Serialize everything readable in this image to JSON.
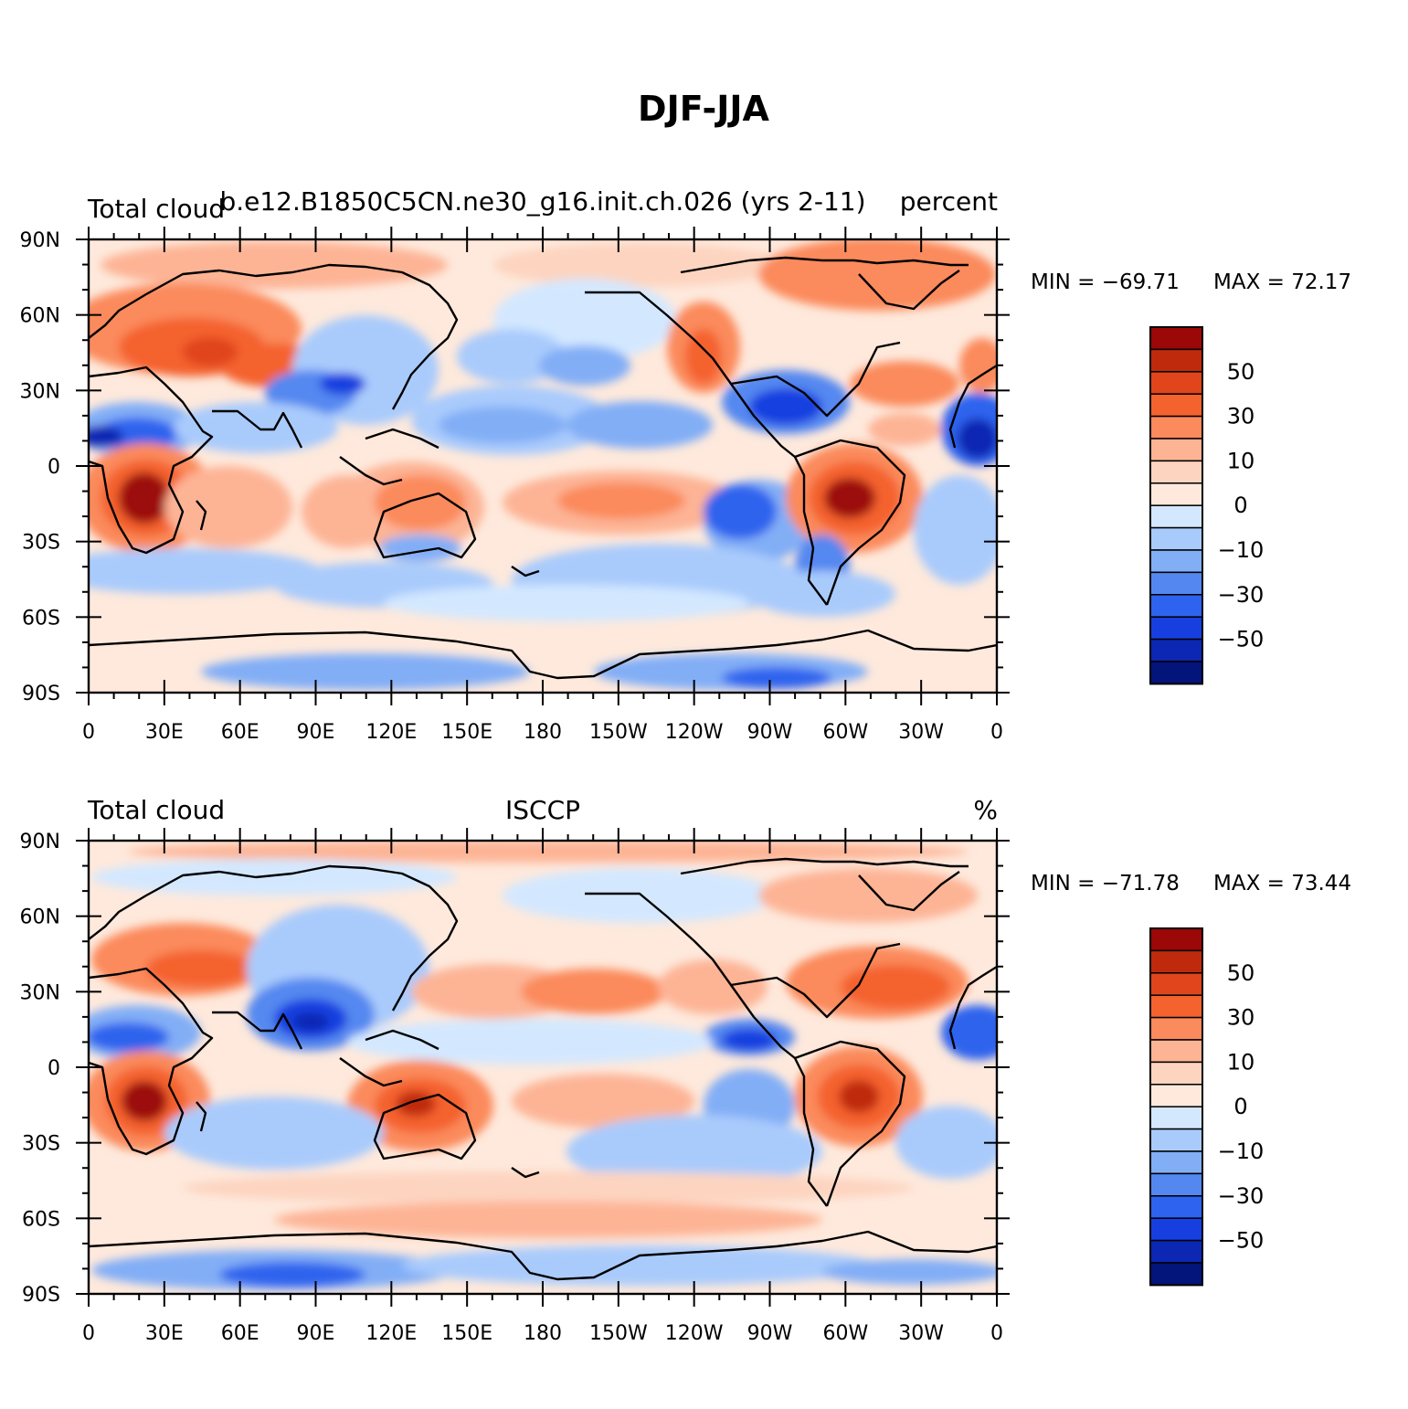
{
  "title": "DJF-JJA",
  "palette": [
    "#9c0707",
    "#bf2a0d",
    "#e0451b",
    "#f4622e",
    "#fb8a5c",
    "#fdb495",
    "#fdd4c0",
    "#fee9dc",
    "#d3e8ff",
    "#a9cbfc",
    "#82aef6",
    "#5488f0",
    "#2d63ee",
    "#173fe0",
    "#0c27b3",
    "#03147a"
  ],
  "palette_names": [
    "Max",
    "+50",
    "+40",
    "+30",
    "+20",
    "+10",
    "+5",
    "0",
    "-5",
    "-10",
    "-20",
    "-30",
    "-40",
    "-50",
    "-60",
    "Min"
  ],
  "lat_labels": [
    "90N",
    "60N",
    "30N",
    "0",
    "30S",
    "60S",
    "90S"
  ],
  "lon_labels": [
    "0",
    "30E",
    "60E",
    "90E",
    "120E",
    "150E",
    "180",
    "150W",
    "120W",
    "90W",
    "60W",
    "30W",
    "0"
  ],
  "colorbar_labels": [
    "50",
    "30",
    "10",
    "0",
    "−10",
    "−30",
    "−50"
  ],
  "panels": [
    {
      "left_title": "Total cloud",
      "center_title": "b.e12.B1850C5CN.ne30_g16.init.ch.026 (yrs 2-11)",
      "right_title": "percent",
      "min_label": "MIN = −69.71",
      "max_label": "MAX =  72.17"
    },
    {
      "left_title": "Total cloud",
      "center_title": "ISCCP",
      "right_title": "%",
      "min_label": "MIN = −71.78",
      "max_label": "MAX =  73.44"
    }
  ]
}
